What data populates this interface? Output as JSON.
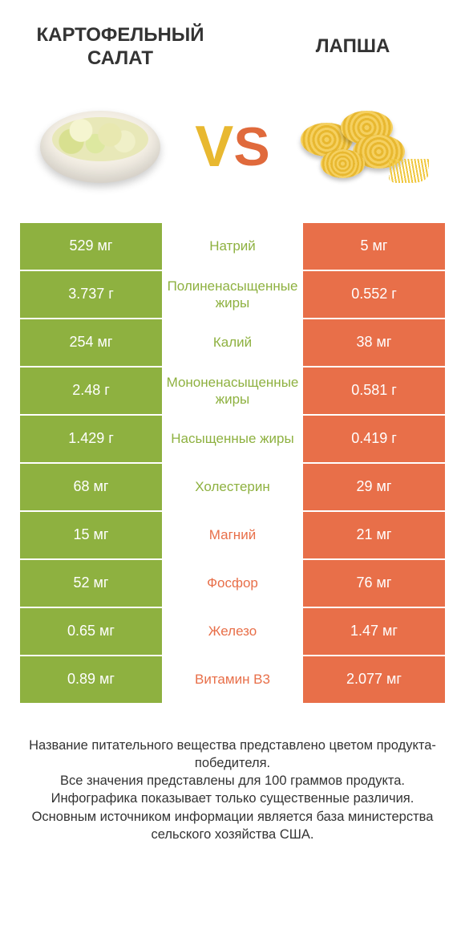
{
  "colors": {
    "green": "#8eb140",
    "orange": "#e86f49",
    "vs_v": "#e8b830",
    "vs_s": "#e06a3c",
    "background": "#ffffff"
  },
  "header": {
    "left_title": "КАРТОФЕЛЬНЫЙ САЛАТ",
    "right_title": "ЛАПША",
    "vs_v": "V",
    "vs_s": "S"
  },
  "rows": [
    {
      "left": "529 мг",
      "label": "Натрий",
      "right": "5 мг",
      "winner": "left"
    },
    {
      "left": "3.737 г",
      "label": "Полиненасыщенные жиры",
      "right": "0.552 г",
      "winner": "left"
    },
    {
      "left": "254 мг",
      "label": "Калий",
      "right": "38 мг",
      "winner": "left"
    },
    {
      "left": "2.48 г",
      "label": "Мононенасыщенные жиры",
      "right": "0.581 г",
      "winner": "left"
    },
    {
      "left": "1.429 г",
      "label": "Насыщенные жиры",
      "right": "0.419 г",
      "winner": "left"
    },
    {
      "left": "68 мг",
      "label": "Холестерин",
      "right": "29 мг",
      "winner": "left"
    },
    {
      "left": "15 мг",
      "label": "Магний",
      "right": "21 мг",
      "winner": "right"
    },
    {
      "left": "52 мг",
      "label": "Фосфор",
      "right": "76 мг",
      "winner": "right"
    },
    {
      "left": "0.65 мг",
      "label": "Железо",
      "right": "1.47 мг",
      "winner": "right"
    },
    {
      "left": "0.89 мг",
      "label": "Витамин B3",
      "right": "2.077 мг",
      "winner": "right"
    }
  ],
  "footer": {
    "line1": "Название питательного вещества представлено цветом продукта-победителя.",
    "line2": "Все значения представлены для 100 граммов продукта.",
    "line3": "Инфографика показывает только существенные различия.",
    "line4": "Основным источником информации является база министерства сельского хозяйства США."
  }
}
